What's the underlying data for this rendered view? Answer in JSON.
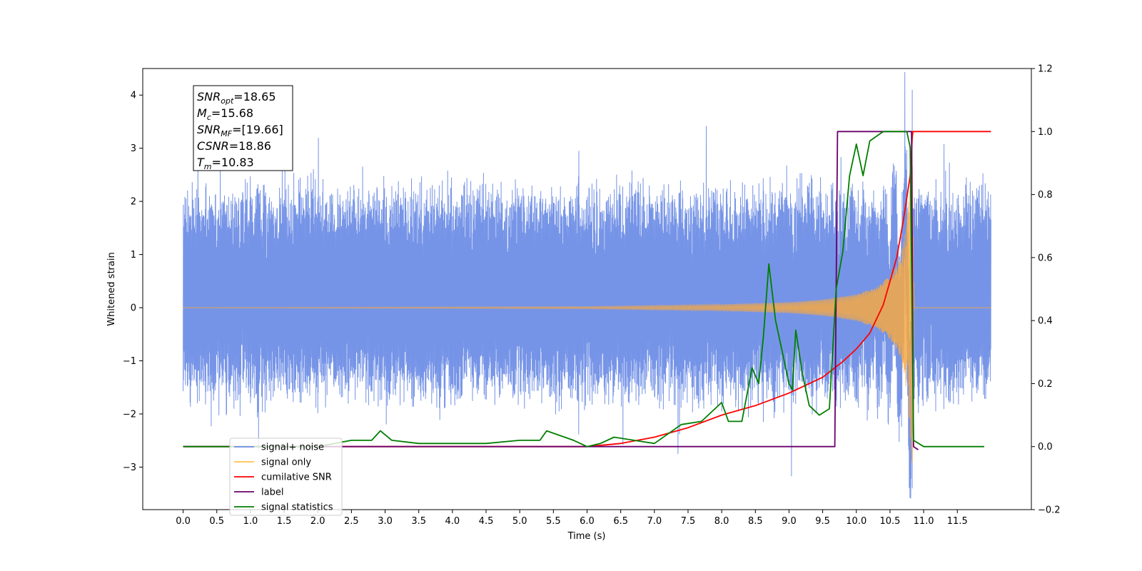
{
  "chart_data": {
    "type": "line",
    "title": "",
    "xlabel": "Time (s)",
    "ylabel": "Whitened strain",
    "xlim": [
      -0.6,
      12.6
    ],
    "ylim": [
      -3.8,
      4.5
    ],
    "y2lim": [
      -0.2,
      1.2
    ],
    "x_ticks": [
      "0.0",
      "0.5",
      "1.0",
      "1.5",
      "2.0",
      "2.5",
      "3.0",
      "3.5",
      "4.0",
      "4.5",
      "5.0",
      "5.5",
      "6.0",
      "6.5",
      "7.0",
      "7.5",
      "8.0",
      "8.5",
      "9.0",
      "9.5",
      "10.0",
      "10.5",
      "11.0",
      "11.5"
    ],
    "y_ticks": [
      "4",
      "3",
      "2",
      "1",
      "0",
      "−1",
      "−2",
      "−3"
    ],
    "y2_ticks": [
      "1.2",
      "1.0",
      "0.8",
      "0.6",
      "0.4",
      "0.2",
      "0.0",
      "−0.2"
    ],
    "grid": false,
    "legend_position": "lower-left",
    "annotation": {
      "lines": [
        {
          "var": "SNR",
          "sub": "opt",
          "value": "=18.65"
        },
        {
          "var": "M",
          "sub": "c",
          "value": "=15.68"
        },
        {
          "var": "SNR",
          "sub": "MF",
          "value": "=[19.66]"
        },
        {
          "var": "CSNR",
          "sub": "",
          "value": "=18.86"
        },
        {
          "var": "T",
          "sub": "m",
          "value": "=10.83"
        }
      ]
    },
    "series": [
      {
        "name": "signal+ noise",
        "color": "#6f8ee6",
        "axis": "left",
        "x": [
          0.0,
          12.0
        ],
        "envelope_upper": [
          2.1,
          2.1
        ],
        "envelope_lower": [
          -1.6,
          -1.6
        ],
        "peak_max": 4.1,
        "peak_max_x": 10.83,
        "peak_min": -3.4,
        "peak_min_x": 10.83
      },
      {
        "name": "signal only",
        "color": "#ffc04d",
        "axis": "left",
        "x": [
          0.0,
          6.0,
          8.0,
          9.0,
          9.5,
          10.0,
          10.3,
          10.5,
          10.6,
          10.7,
          10.75,
          10.8,
          10.83,
          10.86,
          12.0
        ],
        "amplitude": [
          0.0,
          0.02,
          0.06,
          0.1,
          0.15,
          0.25,
          0.38,
          0.6,
          0.8,
          1.2,
          1.6,
          2.4,
          3.0,
          0.0,
          0.0
        ]
      },
      {
        "name": "cumilative SNR",
        "color": "#ff0000",
        "axis": "right",
        "x": [
          0.0,
          6.0,
          6.5,
          7.0,
          7.5,
          8.0,
          8.5,
          9.0,
          9.5,
          9.8,
          10.0,
          10.2,
          10.4,
          10.6,
          10.7,
          10.8,
          10.83,
          10.84,
          12.0
        ],
        "values": [
          0.0,
          0.0,
          0.01,
          0.03,
          0.06,
          0.1,
          0.13,
          0.17,
          0.22,
          0.27,
          0.31,
          0.36,
          0.45,
          0.6,
          0.72,
          0.86,
          0.98,
          1.0,
          1.0
        ]
      },
      {
        "name": "label",
        "color": "#6a006a",
        "axis": "right",
        "x": [
          0.0,
          9.68,
          9.72,
          10.82,
          10.85,
          10.92
        ],
        "values": [
          0.0,
          0.0,
          1.0,
          1.0,
          0.0,
          -0.01
        ]
      },
      {
        "name": "signal statistics",
        "color": "#007f00",
        "axis": "right",
        "x": [
          0.0,
          2.0,
          2.5,
          2.8,
          2.93,
          3.1,
          3.5,
          4.0,
          4.5,
          5.0,
          5.3,
          5.4,
          5.8,
          6.0,
          6.2,
          6.4,
          7.0,
          7.4,
          7.7,
          8.0,
          8.1,
          8.3,
          8.45,
          8.55,
          8.62,
          8.7,
          8.8,
          9.0,
          9.05,
          9.1,
          9.2,
          9.3,
          9.45,
          9.6,
          9.7,
          9.8,
          9.9,
          10.0,
          10.1,
          10.2,
          10.4,
          10.5,
          10.6,
          10.75,
          10.8,
          10.85,
          11.0,
          11.9
        ],
        "values": [
          0.0,
          0.0,
          0.02,
          0.02,
          0.05,
          0.02,
          0.01,
          0.01,
          0.01,
          0.02,
          0.02,
          0.05,
          0.02,
          0.0,
          0.01,
          0.03,
          0.01,
          0.07,
          0.08,
          0.14,
          0.08,
          0.08,
          0.25,
          0.2,
          0.35,
          0.58,
          0.4,
          0.2,
          0.18,
          0.37,
          0.23,
          0.13,
          0.1,
          0.12,
          0.5,
          0.62,
          0.86,
          0.96,
          0.86,
          0.97,
          1.0,
          1.0,
          1.0,
          1.0,
          0.95,
          0.02,
          0.0,
          0.0
        ]
      }
    ]
  }
}
